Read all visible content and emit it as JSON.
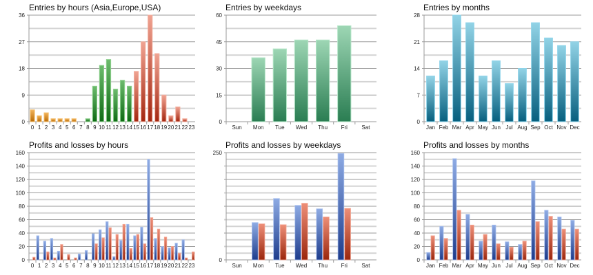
{
  "chart_data": [
    {
      "id": "entries-hours",
      "type": "bar",
      "title": "Entries by hours (Asia,Europe,USA)",
      "categories": [
        "0",
        "1",
        "2",
        "3",
        "4",
        "5",
        "6",
        "7",
        "8",
        "9",
        "10",
        "11",
        "12",
        "13",
        "14",
        "15",
        "16",
        "17",
        "18",
        "19",
        "20",
        "21",
        "22",
        "23"
      ],
      "values": [
        4,
        2,
        3,
        1,
        1,
        1,
        1,
        0,
        1,
        12,
        19,
        21,
        11,
        14,
        12,
        17,
        27,
        36,
        23,
        9,
        2,
        5,
        1,
        0
      ],
      "color_groups": [
        {
          "name": "Asia",
          "from": 0,
          "to": 7,
          "top": "#f2b35a",
          "bottom": "#b86a05",
          "edge": "#f5c070"
        },
        {
          "name": "Europe",
          "from": 8,
          "to": 14,
          "top": "#6dbb6d",
          "bottom": "#0e6a14",
          "edge": "#8fd08f"
        },
        {
          "name": "USA",
          "from": 15,
          "to": 23,
          "top": "#f0a392",
          "bottom": "#a3260f",
          "edge": "#f3b0a0"
        }
      ],
      "ylim": [
        0,
        36
      ],
      "yticks": [
        0,
        9,
        18,
        27,
        36
      ],
      "xlabel": "",
      "ylabel": "",
      "grid": true,
      "legend": "none"
    },
    {
      "id": "entries-weekdays",
      "type": "bar",
      "title": "Entries by weekdays",
      "categories": [
        "Sun",
        "Mon",
        "Tue",
        "Wed",
        "Thu",
        "Fri",
        "Sat"
      ],
      "values": [
        0,
        36,
        41,
        46,
        46,
        54,
        0
      ],
      "colors": {
        "top": "#9dd6b4",
        "bottom": "#2a7d52",
        "edge": "#b5e6c8"
      },
      "ylim": [
        0,
        60
      ],
      "yticks": [
        0,
        15,
        30,
        45,
        60
      ],
      "xlabel": "",
      "ylabel": "",
      "grid": true,
      "legend": "none"
    },
    {
      "id": "entries-months",
      "type": "bar",
      "title": "Entries by months",
      "categories": [
        "Jan",
        "Feb",
        "Mar",
        "Apr",
        "May",
        "Jun",
        "Jul",
        "Aug",
        "Sep",
        "Oct",
        "Nov",
        "Dec"
      ],
      "values": [
        12,
        16,
        28,
        26,
        12,
        16,
        10,
        14,
        26,
        22,
        20,
        21
      ],
      "colors": {
        "top": "#92d3e6",
        "bottom": "#075f7e",
        "edge": "#8fd4ea"
      },
      "ylim": [
        0,
        28
      ],
      "yticks": [
        0,
        7,
        14,
        21,
        28
      ],
      "xlabel": "",
      "ylabel": "",
      "grid": true,
      "legend": "none"
    },
    {
      "id": "pl-hours",
      "type": "bar",
      "title": "Profits and losses by hours",
      "categories": [
        "0",
        "1",
        "2",
        "3",
        "4",
        "5",
        "6",
        "7",
        "8",
        "9",
        "10",
        "11",
        "12",
        "13",
        "14",
        "15",
        "16",
        "17",
        "18",
        "19",
        "20",
        "21",
        "22",
        "23"
      ],
      "series": [
        {
          "name": "Profits",
          "values": [
            0,
            36,
            28,
            32,
            13,
            0,
            0,
            9,
            14,
            39,
            45,
            57,
            5,
            29,
            53,
            36,
            49,
            150,
            32,
            20,
            18,
            25,
            30,
            0
          ]
        },
        {
          "name": "Losses",
          "values": [
            4,
            0,
            12,
            3,
            23,
            8,
            3,
            0,
            0,
            24,
            33,
            48,
            38,
            53,
            17,
            38,
            24,
            63,
            46,
            34,
            20,
            10,
            3,
            12
          ]
        }
      ],
      "ylim": [
        0,
        160
      ],
      "yticks": [
        0,
        20,
        40,
        60,
        80,
        100,
        120,
        140,
        160
      ],
      "xlabel": "",
      "ylabel": "",
      "grid": true,
      "legend": "none"
    },
    {
      "id": "pl-weekdays",
      "type": "bar",
      "title": "Profits and losses by weekdays",
      "categories": [
        "Sun",
        "Mon",
        "Tue",
        "Wed",
        "Thu",
        "Fri",
        "Sat"
      ],
      "series": [
        {
          "name": "Profits",
          "values": [
            0,
            87,
            143,
            127,
            119,
            248,
            0
          ]
        },
        {
          "name": "Losses",
          "values": [
            0,
            84,
            82,
            132,
            100,
            120,
            0
          ]
        }
      ],
      "ylim": [
        0,
        250
      ],
      "yticks": [
        0,
        250
      ],
      "gridlines": 8,
      "xlabel": "",
      "ylabel": "",
      "grid": true,
      "legend": "none"
    },
    {
      "id": "pl-months",
      "type": "bar",
      "title": "Profits and losses by months",
      "categories": [
        "Jan",
        "Feb",
        "Mar",
        "Apr",
        "May",
        "Jun",
        "Jul",
        "Aug",
        "Sep",
        "Oct",
        "Nov",
        "Dec"
      ],
      "series": [
        {
          "name": "Profits",
          "values": [
            11,
            50,
            151,
            68,
            28,
            52,
            27,
            23,
            118,
            74,
            64,
            59
          ]
        },
        {
          "name": "Losses",
          "values": [
            36,
            32,
            74,
            52,
            38,
            24,
            19,
            28,
            57,
            65,
            46,
            46
          ]
        }
      ],
      "ylim": [
        0,
        160
      ],
      "yticks": [
        0,
        20,
        40,
        60,
        80,
        100,
        120,
        140,
        160
      ],
      "xlabel": "",
      "ylabel": "",
      "grid": true,
      "legend": "none"
    }
  ],
  "series_colors": {
    "Profits": {
      "top": "#8eabe4",
      "bottom": "#1d3c8c",
      "edge": "#a9c0ee"
    },
    "Losses": {
      "top": "#ee8f78",
      "bottom": "#9a260c",
      "edge": "#f3a896"
    }
  }
}
